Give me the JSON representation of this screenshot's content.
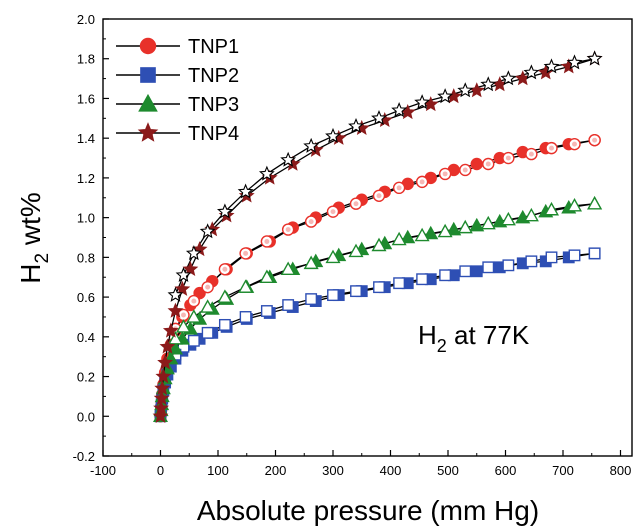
{
  "chart_data": {
    "type": "scatter",
    "xlabel": "Absolute pressure (mm Hg)",
    "ylabel_main": "H",
    "ylabel_sub": "2",
    "ylabel_rest": " wt%",
    "xlim": [
      -100,
      820
    ],
    "ylim": [
      -0.2,
      2.0
    ],
    "xticks": [
      -100,
      0,
      100,
      200,
      300,
      400,
      500,
      600,
      700,
      800
    ],
    "yticks": [
      -0.2,
      0.0,
      0.2,
      0.4,
      0.6,
      0.8,
      1.0,
      1.2,
      1.4,
      1.6,
      1.8,
      2.0
    ],
    "legend_position": "top-left",
    "annotation": {
      "main": "H",
      "sub": "2",
      "rest": " at 77K"
    },
    "series": [
      {
        "name": "TNP1",
        "color": "#e8312a",
        "marker": "circle",
        "adsorption": [
          [
            0,
            0.0
          ],
          [
            1,
            0.03
          ],
          [
            2,
            0.07
          ],
          [
            3,
            0.11
          ],
          [
            5,
            0.16
          ],
          [
            8,
            0.22
          ],
          [
            12,
            0.29
          ],
          [
            18,
            0.36
          ],
          [
            26,
            0.43
          ],
          [
            38,
            0.5
          ],
          [
            52,
            0.56
          ],
          [
            68,
            0.62
          ],
          [
            90,
            0.68
          ],
          [
            115,
            0.74
          ],
          [
            150,
            0.82
          ],
          [
            190,
            0.88
          ],
          [
            230,
            0.95
          ],
          [
            270,
            1.0
          ],
          [
            310,
            1.05
          ],
          [
            350,
            1.09
          ],
          [
            390,
            1.13
          ],
          [
            430,
            1.17
          ],
          [
            470,
            1.2
          ],
          [
            510,
            1.24
          ],
          [
            550,
            1.27
          ],
          [
            590,
            1.3
          ],
          [
            630,
            1.33
          ],
          [
            670,
            1.35
          ],
          [
            710,
            1.37
          ],
          [
            755,
            1.39
          ]
        ],
        "desorption": [
          [
            755,
            1.39
          ],
          [
            720,
            1.37
          ],
          [
            680,
            1.35
          ],
          [
            645,
            1.32
          ],
          [
            605,
            1.3
          ],
          [
            570,
            1.27
          ],
          [
            530,
            1.24
          ],
          [
            495,
            1.22
          ],
          [
            455,
            1.18
          ],
          [
            415,
            1.15
          ],
          [
            380,
            1.11
          ],
          [
            340,
            1.07
          ],
          [
            300,
            1.03
          ],
          [
            262,
            0.98
          ],
          [
            222,
            0.94
          ],
          [
            185,
            0.88
          ],
          [
            148,
            0.82
          ],
          [
            112,
            0.74
          ],
          [
            82,
            0.65
          ],
          [
            58,
            0.58
          ],
          [
            40,
            0.51
          ],
          [
            26,
            0.44
          ]
        ]
      },
      {
        "name": "TNP2",
        "color": "#2e4fb4",
        "marker": "square",
        "adsorption": [
          [
            0,
            0.0
          ],
          [
            1,
            0.03
          ],
          [
            2,
            0.06
          ],
          [
            3,
            0.09
          ],
          [
            5,
            0.13
          ],
          [
            8,
            0.17
          ],
          [
            12,
            0.21
          ],
          [
            18,
            0.25
          ],
          [
            26,
            0.29
          ],
          [
            38,
            0.33
          ],
          [
            52,
            0.36
          ],
          [
            68,
            0.39
          ],
          [
            90,
            0.42
          ],
          [
            115,
            0.45
          ],
          [
            150,
            0.49
          ],
          [
            190,
            0.52
          ],
          [
            230,
            0.55
          ],
          [
            270,
            0.58
          ],
          [
            310,
            0.61
          ],
          [
            350,
            0.63
          ],
          [
            390,
            0.65
          ],
          [
            430,
            0.67
          ],
          [
            470,
            0.69
          ],
          [
            510,
            0.71
          ],
          [
            550,
            0.73
          ],
          [
            590,
            0.75
          ],
          [
            630,
            0.77
          ],
          [
            670,
            0.78
          ],
          [
            710,
            0.8
          ],
          [
            755,
            0.82
          ]
        ],
        "desorption": [
          [
            755,
            0.82
          ],
          [
            720,
            0.81
          ],
          [
            680,
            0.8
          ],
          [
            645,
            0.78
          ],
          [
            605,
            0.76
          ],
          [
            570,
            0.75
          ],
          [
            530,
            0.73
          ],
          [
            495,
            0.71
          ],
          [
            455,
            0.69
          ],
          [
            415,
            0.67
          ],
          [
            380,
            0.65
          ],
          [
            340,
            0.63
          ],
          [
            300,
            0.61
          ],
          [
            262,
            0.59
          ],
          [
            222,
            0.56
          ],
          [
            185,
            0.53
          ],
          [
            148,
            0.5
          ],
          [
            112,
            0.46
          ],
          [
            82,
            0.42
          ],
          [
            58,
            0.38
          ],
          [
            40,
            0.35
          ],
          [
            26,
            0.31
          ]
        ]
      },
      {
        "name": "TNP3",
        "color": "#1e8a2e",
        "marker": "triangle",
        "adsorption": [
          [
            0,
            0.0
          ],
          [
            1,
            0.03
          ],
          [
            2,
            0.06
          ],
          [
            3,
            0.1
          ],
          [
            5,
            0.14
          ],
          [
            8,
            0.19
          ],
          [
            12,
            0.24
          ],
          [
            18,
            0.29
          ],
          [
            26,
            0.34
          ],
          [
            38,
            0.39
          ],
          [
            52,
            0.44
          ],
          [
            68,
            0.49
          ],
          [
            90,
            0.54
          ],
          [
            115,
            0.59
          ],
          [
            150,
            0.65
          ],
          [
            190,
            0.7
          ],
          [
            230,
            0.74
          ],
          [
            270,
            0.78
          ],
          [
            310,
            0.81
          ],
          [
            350,
            0.84
          ],
          [
            390,
            0.87
          ],
          [
            430,
            0.9
          ],
          [
            470,
            0.92
          ],
          [
            510,
            0.94
          ],
          [
            550,
            0.96
          ],
          [
            590,
            0.98
          ],
          [
            630,
            1.0
          ],
          [
            670,
            1.03
          ],
          [
            710,
            1.05
          ],
          [
            755,
            1.07
          ]
        ],
        "desorption": [
          [
            755,
            1.07
          ],
          [
            720,
            1.06
          ],
          [
            680,
            1.04
          ],
          [
            645,
            1.01
          ],
          [
            605,
            0.99
          ],
          [
            570,
            0.97
          ],
          [
            530,
            0.95
          ],
          [
            495,
            0.93
          ],
          [
            455,
            0.91
          ],
          [
            415,
            0.89
          ],
          [
            380,
            0.86
          ],
          [
            340,
            0.83
          ],
          [
            300,
            0.8
          ],
          [
            262,
            0.77
          ],
          [
            222,
            0.74
          ],
          [
            185,
            0.7
          ],
          [
            148,
            0.65
          ],
          [
            112,
            0.6
          ],
          [
            82,
            0.55
          ],
          [
            58,
            0.5
          ],
          [
            40,
            0.45
          ],
          [
            26,
            0.39
          ]
        ]
      },
      {
        "name": "TNP4",
        "color": "#8b1a1a",
        "marker": "star",
        "adsorption": [
          [
            0,
            0.0
          ],
          [
            1,
            0.04
          ],
          [
            2,
            0.09
          ],
          [
            3,
            0.14
          ],
          [
            5,
            0.2
          ],
          [
            8,
            0.27
          ],
          [
            12,
            0.35
          ],
          [
            18,
            0.43
          ],
          [
            26,
            0.53
          ],
          [
            38,
            0.64
          ],
          [
            52,
            0.74
          ],
          [
            68,
            0.84
          ],
          [
            90,
            0.94
          ],
          [
            115,
            1.01
          ],
          [
            150,
            1.11
          ],
          [
            190,
            1.2
          ],
          [
            230,
            1.27
          ],
          [
            270,
            1.34
          ],
          [
            310,
            1.4
          ],
          [
            350,
            1.45
          ],
          [
            390,
            1.49
          ],
          [
            430,
            1.53
          ],
          [
            470,
            1.57
          ],
          [
            510,
            1.61
          ],
          [
            550,
            1.64
          ],
          [
            590,
            1.67
          ],
          [
            630,
            1.7
          ],
          [
            670,
            1.73
          ],
          [
            710,
            1.76
          ],
          [
            755,
            1.8
          ]
        ],
        "desorption": [
          [
            755,
            1.8
          ],
          [
            720,
            1.78
          ],
          [
            680,
            1.76
          ],
          [
            645,
            1.73
          ],
          [
            605,
            1.7
          ],
          [
            570,
            1.67
          ],
          [
            530,
            1.64
          ],
          [
            495,
            1.61
          ],
          [
            455,
            1.58
          ],
          [
            415,
            1.54
          ],
          [
            380,
            1.5
          ],
          [
            340,
            1.46
          ],
          [
            300,
            1.41
          ],
          [
            262,
            1.36
          ],
          [
            222,
            1.29
          ],
          [
            185,
            1.22
          ],
          [
            148,
            1.13
          ],
          [
            112,
            1.03
          ],
          [
            82,
            0.93
          ],
          [
            58,
            0.82
          ],
          [
            40,
            0.71
          ],
          [
            26,
            0.61
          ]
        ]
      }
    ]
  }
}
